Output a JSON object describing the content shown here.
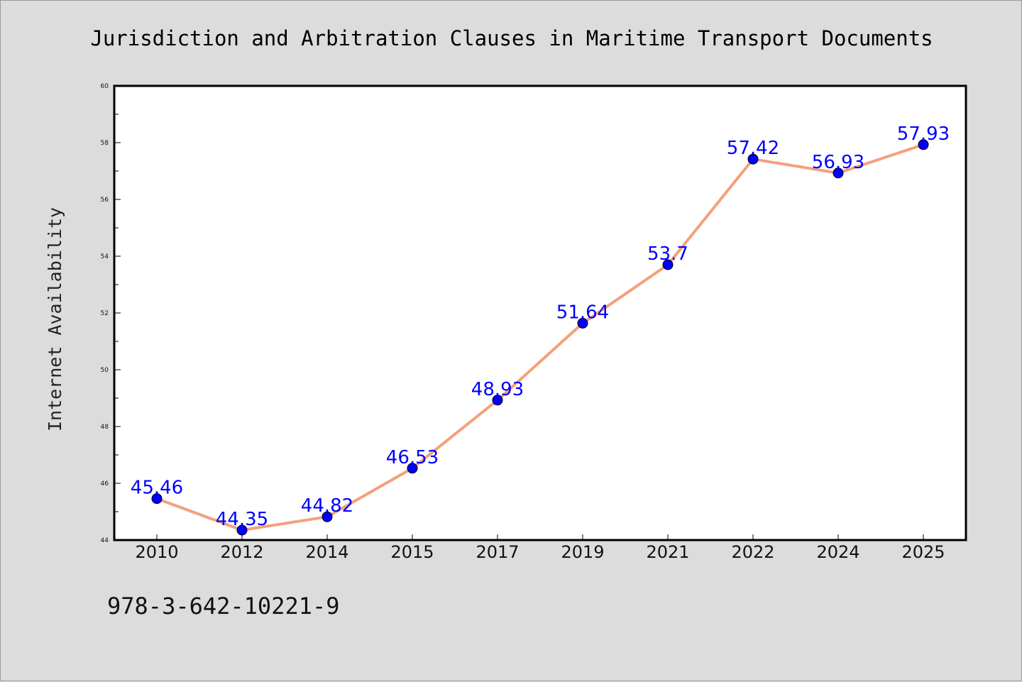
{
  "footer_text": "978-3-642-10221-9",
  "chart_data": {
    "type": "line",
    "title": "Jurisdiction and Arbitration Clauses in Maritime Transport Documents",
    "xlabel": "",
    "ylabel": "Internet Availability",
    "categories": [
      "2010",
      "2012",
      "2014",
      "2015",
      "2017",
      "2019",
      "2021",
      "2022",
      "2024",
      "2025"
    ],
    "values": [
      45.46,
      44.35,
      44.82,
      46.53,
      48.93,
      51.64,
      53.7,
      57.42,
      56.93,
      57.93
    ],
    "data_labels": [
      "45.46",
      "44.35",
      "44.82",
      "46.53",
      "48.93",
      "51.64",
      "53.7",
      "57.42",
      "56.93",
      "57.93"
    ],
    "ylim": [
      44,
      60
    ],
    "yticks": [
      44,
      46,
      48,
      50,
      52,
      54,
      56,
      58,
      60
    ],
    "grid": false,
    "legend": "none",
    "colors": {
      "line": "#f4a07c",
      "marker": "#0000ff",
      "label": "#0000ff"
    }
  }
}
